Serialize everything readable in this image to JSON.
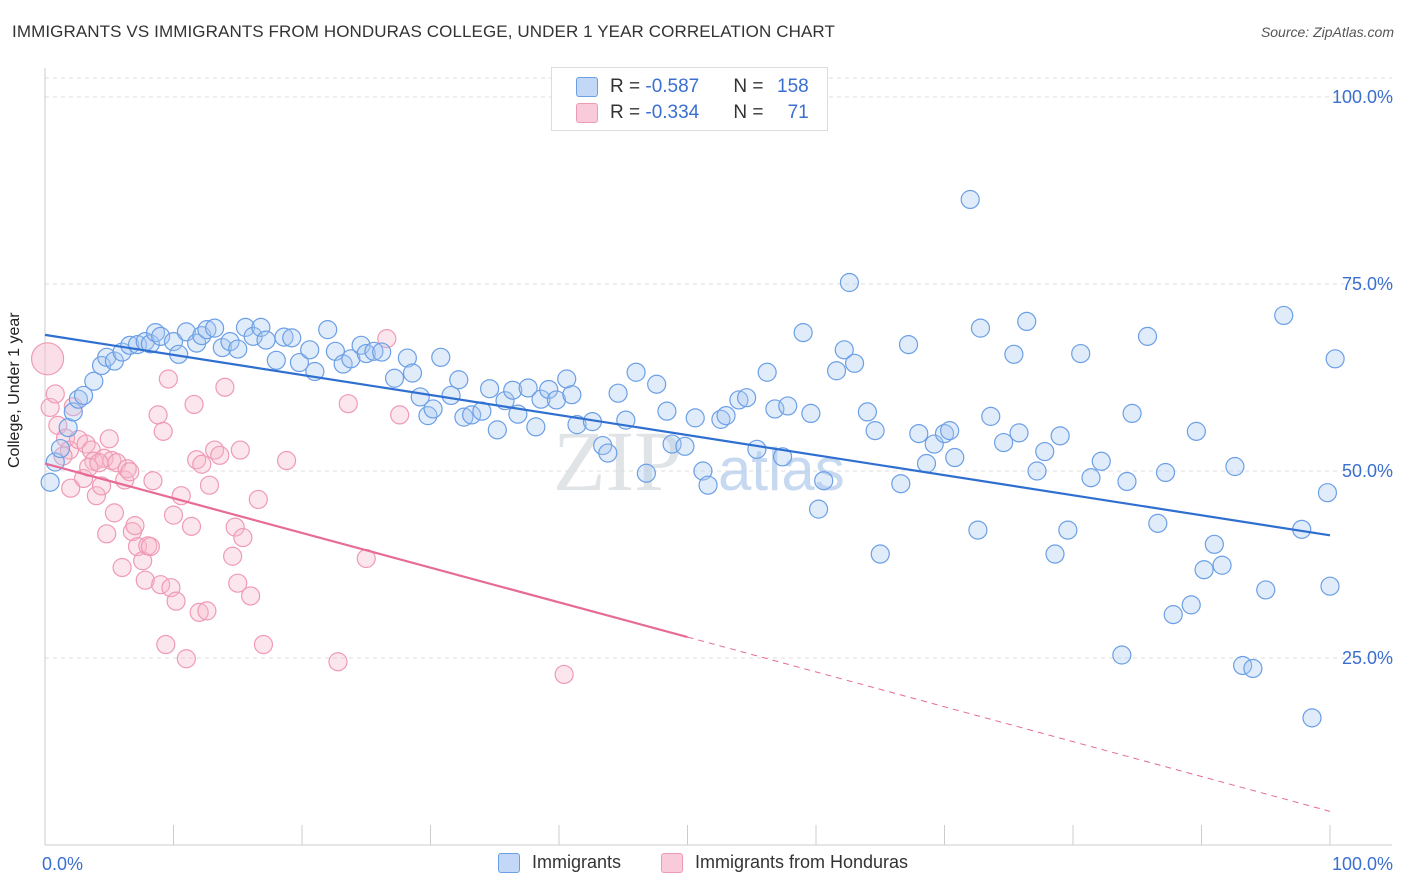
{
  "header": {
    "title": "IMMIGRANTS VS IMMIGRANTS FROM HONDURAS COLLEGE, UNDER 1 YEAR CORRELATION CHART",
    "source": "Source: ZipAtlas.com"
  },
  "legend_top": {
    "rows": [
      {
        "r_label": "R = ",
        "r_value": "-0.587",
        "n_label": "N = ",
        "n_value": "158",
        "color": "#6b9fe6"
      },
      {
        "r_label": "R = ",
        "r_value": "-0.334",
        "n_label": "N = ",
        "n_value": "71",
        "color": "#ef9ab5"
      }
    ]
  },
  "legend_bottom": {
    "items": [
      {
        "label": "Immigrants",
        "color": "#6b9fe6"
      },
      {
        "label": "Immigrants from Honduras",
        "color": "#ef9ab5"
      }
    ]
  },
  "watermark": {
    "zip": "ZIP",
    "atlas": "atlas"
  },
  "chart_data": {
    "type": "scatter",
    "title": "IMMIGRANTS VS IMMIGRANTS FROM HONDURAS COLLEGE, UNDER 1 YEAR CORRELATION CHART",
    "xlabel": "",
    "ylabel": "College, Under 1 year",
    "xlim": [
      0,
      100
    ],
    "ylim": [
      0,
      105
    ],
    "x_tick_labels": [
      "0.0%",
      "100.0%"
    ],
    "y_ticks": [
      25,
      50,
      75,
      100
    ],
    "y_tick_labels": [
      "25.0%",
      "50.0%",
      "75.0%",
      "100.0%"
    ],
    "grid": true,
    "legend_position": "top-center",
    "series": [
      {
        "name": "Immigrants",
        "color": "#6b9fe6",
        "line_color": "#2f6fd0",
        "r": -0.587,
        "n": 158,
        "trend": {
          "x": [
            0,
            100
          ],
          "y": [
            68.2,
            41.4
          ]
        },
        "points": [
          [
            0.4,
            48.5
          ],
          [
            0.8,
            51.2
          ],
          [
            1.2,
            53.0
          ],
          [
            1.8,
            55.8
          ],
          [
            2.2,
            57.9
          ],
          [
            2.6,
            59.6
          ],
          [
            3.0,
            60.1
          ],
          [
            3.8,
            62.0
          ],
          [
            4.4,
            64.1
          ],
          [
            4.8,
            65.2
          ],
          [
            5.4,
            64.7
          ],
          [
            6.0,
            65.9
          ],
          [
            6.6,
            66.8
          ],
          [
            7.2,
            66.9
          ],
          [
            7.8,
            67.3
          ],
          [
            8.2,
            67.0
          ],
          [
            8.6,
            68.5
          ],
          [
            9.0,
            68.0
          ],
          [
            10.0,
            67.3
          ],
          [
            10.4,
            65.6
          ],
          [
            11.0,
            68.6
          ],
          [
            11.8,
            67.1
          ],
          [
            12.2,
            68.1
          ],
          [
            12.6,
            68.9
          ],
          [
            13.2,
            69.1
          ],
          [
            13.8,
            66.5
          ],
          [
            14.4,
            67.3
          ],
          [
            15.0,
            66.3
          ],
          [
            15.6,
            69.2
          ],
          [
            16.2,
            68.0
          ],
          [
            16.8,
            69.2
          ],
          [
            17.2,
            67.5
          ],
          [
            18.0,
            64.8
          ],
          [
            18.6,
            67.9
          ],
          [
            19.2,
            67.8
          ],
          [
            19.8,
            64.5
          ],
          [
            20.6,
            66.2
          ],
          [
            21.0,
            63.3
          ],
          [
            22.0,
            68.9
          ],
          [
            22.6,
            66.0
          ],
          [
            23.2,
            64.3
          ],
          [
            23.8,
            65.0
          ],
          [
            24.6,
            66.8
          ],
          [
            25.0,
            65.7
          ],
          [
            25.6,
            66.0
          ],
          [
            26.2,
            65.9
          ],
          [
            27.2,
            62.4
          ],
          [
            28.2,
            65.1
          ],
          [
            28.6,
            63.1
          ],
          [
            29.2,
            59.9
          ],
          [
            29.8,
            57.4
          ],
          [
            30.2,
            58.3
          ],
          [
            30.8,
            65.2
          ],
          [
            31.6,
            60.1
          ],
          [
            32.2,
            62.2
          ],
          [
            32.6,
            57.2
          ],
          [
            33.2,
            57.5
          ],
          [
            34.0,
            58.0
          ],
          [
            34.6,
            61.0
          ],
          [
            35.2,
            55.5
          ],
          [
            35.8,
            59.4
          ],
          [
            36.4,
            60.8
          ],
          [
            36.8,
            57.6
          ],
          [
            37.6,
            61.1
          ],
          [
            38.2,
            55.9
          ],
          [
            38.6,
            59.6
          ],
          [
            39.2,
            60.9
          ],
          [
            39.8,
            59.5
          ],
          [
            40.6,
            62.3
          ],
          [
            41.0,
            60.2
          ],
          [
            41.4,
            56.2
          ],
          [
            42.6,
            56.6
          ],
          [
            43.4,
            53.4
          ],
          [
            43.8,
            52.4
          ],
          [
            44.6,
            60.4
          ],
          [
            45.2,
            56.8
          ],
          [
            46.0,
            63.2
          ],
          [
            46.8,
            49.7
          ],
          [
            47.6,
            61.6
          ],
          [
            48.4,
            58.0
          ],
          [
            48.8,
            53.6
          ],
          [
            49.8,
            53.3
          ],
          [
            50.6,
            57.1
          ],
          [
            51.2,
            50.0
          ],
          [
            51.6,
            48.1
          ],
          [
            52.6,
            56.9
          ],
          [
            53.0,
            57.4
          ],
          [
            54.0,
            59.5
          ],
          [
            54.6,
            59.8
          ],
          [
            55.4,
            52.9
          ],
          [
            56.2,
            63.2
          ],
          [
            56.8,
            58.3
          ],
          [
            57.4,
            51.9
          ],
          [
            57.8,
            58.7
          ],
          [
            59.0,
            68.5
          ],
          [
            59.6,
            57.7
          ],
          [
            60.2,
            44.9
          ],
          [
            60.6,
            48.7
          ],
          [
            61.6,
            63.4
          ],
          [
            62.6,
            75.2
          ],
          [
            62.2,
            66.2
          ],
          [
            63.0,
            64.4
          ],
          [
            64.0,
            57.9
          ],
          [
            64.6,
            55.4
          ],
          [
            65.0,
            38.9
          ],
          [
            66.6,
            48.3
          ],
          [
            67.2,
            66.9
          ],
          [
            68.0,
            55.0
          ],
          [
            68.6,
            51.0
          ],
          [
            69.2,
            53.6
          ],
          [
            70.0,
            55.0
          ],
          [
            70.4,
            55.4
          ],
          [
            70.8,
            51.8
          ],
          [
            72.0,
            86.3
          ],
          [
            72.6,
            42.1
          ],
          [
            72.8,
            69.1
          ],
          [
            73.6,
            57.3
          ],
          [
            74.6,
            53.8
          ],
          [
            75.4,
            65.6
          ],
          [
            75.8,
            55.1
          ],
          [
            76.4,
            70.0
          ],
          [
            77.2,
            50.0
          ],
          [
            77.8,
            52.6
          ],
          [
            78.6,
            38.9
          ],
          [
            79.0,
            54.7
          ],
          [
            79.6,
            42.1
          ],
          [
            80.6,
            65.7
          ],
          [
            81.4,
            49.1
          ],
          [
            82.2,
            51.3
          ],
          [
            83.8,
            25.4
          ],
          [
            84.2,
            48.6
          ],
          [
            84.6,
            57.7
          ],
          [
            85.8,
            68.0
          ],
          [
            86.6,
            43.0
          ],
          [
            87.2,
            49.8
          ],
          [
            87.8,
            30.8
          ],
          [
            89.2,
            32.1
          ],
          [
            89.6,
            55.3
          ],
          [
            90.2,
            36.8
          ],
          [
            91.0,
            40.2
          ],
          [
            91.6,
            37.4
          ],
          [
            92.6,
            50.6
          ],
          [
            93.2,
            24.0
          ],
          [
            94.0,
            23.6
          ],
          [
            95.0,
            34.1
          ],
          [
            96.4,
            70.8
          ],
          [
            97.8,
            42.2
          ],
          [
            98.6,
            17.0
          ],
          [
            99.8,
            47.1
          ],
          [
            100.0,
            34.6
          ],
          [
            100.4,
            65.0
          ]
        ]
      },
      {
        "name": "Immigrants from Honduras",
        "color": "#ef9ab5",
        "line_color": "#e66b96",
        "r": -0.334,
        "n": 71,
        "trend": {
          "x": [
            0,
            50
          ],
          "y": [
            51.0,
            27.8
          ],
          "dashed_to": {
            "x": 100,
            "y": 4.5
          }
        },
        "points": [
          [
            0.2,
            65.0
          ],
          [
            0.4,
            58.5
          ],
          [
            0.8,
            60.3
          ],
          [
            1.0,
            56.1
          ],
          [
            1.6,
            54.4
          ],
          [
            1.9,
            52.8
          ],
          [
            2.2,
            58.6
          ],
          [
            2.6,
            54.2
          ],
          [
            3.0,
            49.0
          ],
          [
            3.2,
            53.6
          ],
          [
            3.6,
            52.8
          ],
          [
            3.8,
            51.3
          ],
          [
            4.0,
            46.7
          ],
          [
            4.4,
            48.0
          ],
          [
            4.6,
            51.7
          ],
          [
            4.8,
            41.6
          ],
          [
            5.0,
            54.3
          ],
          [
            5.2,
            51.4
          ],
          [
            5.6,
            51.1
          ],
          [
            6.0,
            37.1
          ],
          [
            6.2,
            48.8
          ],
          [
            6.4,
            50.3
          ],
          [
            6.8,
            41.9
          ],
          [
            7.0,
            42.7
          ],
          [
            7.2,
            39.9
          ],
          [
            7.6,
            38.0
          ],
          [
            7.8,
            35.4
          ],
          [
            8.0,
            40.0
          ],
          [
            8.2,
            39.9
          ],
          [
            8.4,
            48.7
          ],
          [
            8.8,
            57.5
          ],
          [
            9.0,
            34.8
          ],
          [
            9.2,
            55.3
          ],
          [
            9.4,
            26.8
          ],
          [
            9.6,
            62.3
          ],
          [
            9.8,
            34.4
          ],
          [
            10.0,
            44.1
          ],
          [
            10.2,
            32.6
          ],
          [
            10.6,
            46.7
          ],
          [
            11.0,
            24.9
          ],
          [
            11.4,
            42.6
          ],
          [
            11.6,
            58.9
          ],
          [
            11.8,
            51.5
          ],
          [
            12.0,
            31.1
          ],
          [
            12.2,
            50.9
          ],
          [
            12.6,
            31.3
          ],
          [
            12.8,
            48.1
          ],
          [
            13.2,
            52.8
          ],
          [
            13.6,
            52.1
          ],
          [
            14.0,
            61.2
          ],
          [
            14.6,
            38.6
          ],
          [
            14.8,
            42.5
          ],
          [
            15.0,
            35.0
          ],
          [
            15.2,
            52.8
          ],
          [
            15.4,
            41.1
          ],
          [
            16.0,
            33.3
          ],
          [
            16.6,
            46.2
          ],
          [
            17.0,
            26.8
          ],
          [
            18.8,
            51.4
          ],
          [
            22.8,
            24.5
          ],
          [
            23.6,
            59.0
          ],
          [
            25.0,
            38.3
          ],
          [
            26.6,
            67.7
          ],
          [
            27.6,
            57.5
          ],
          [
            40.4,
            22.8
          ],
          [
            1.4,
            52.0
          ],
          [
            2.0,
            47.7
          ],
          [
            3.4,
            50.5
          ],
          [
            5.4,
            44.4
          ],
          [
            6.6,
            49.9
          ],
          [
            4.2,
            51.1
          ]
        ]
      }
    ]
  }
}
